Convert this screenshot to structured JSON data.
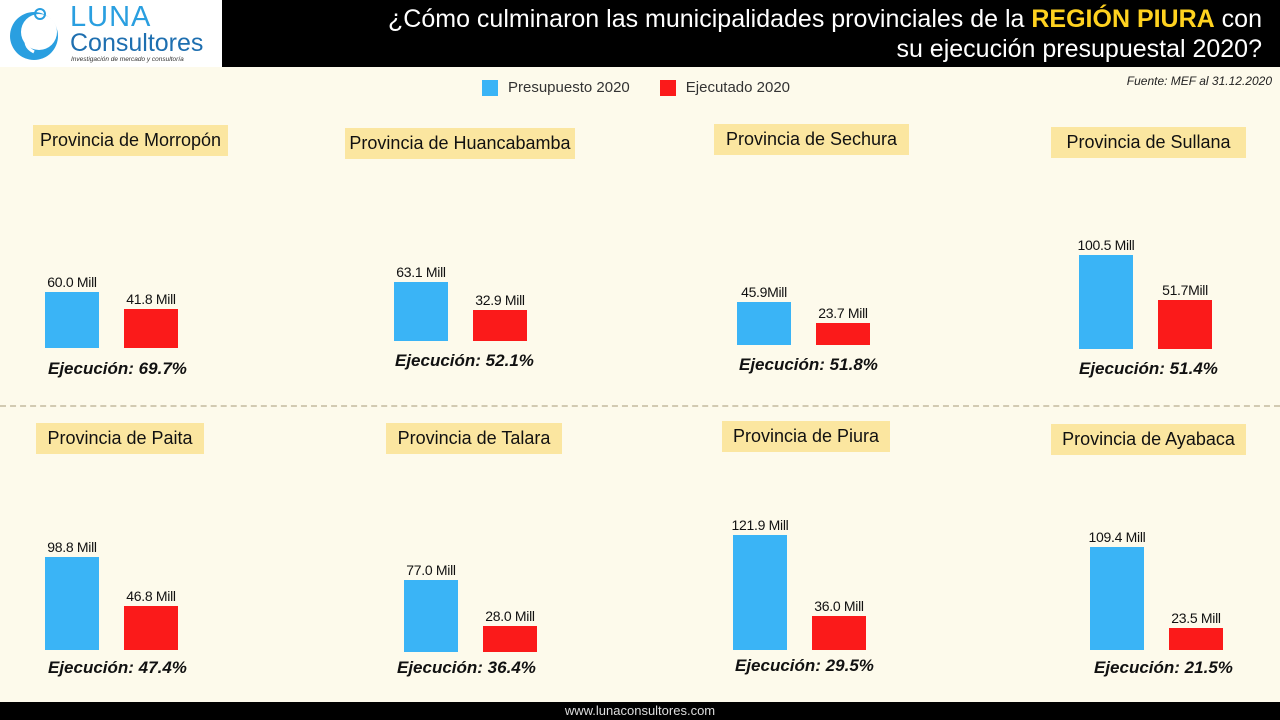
{
  "header": {
    "logo_luna": "LUNA",
    "logo_consultores": "Consultores",
    "logo_tagline": "Investigación de mercado y consultoría",
    "title_part1": "¿Cómo culminaron las municipalidades provinciales de la ",
    "title_highlight": "REGIÓN PIURA",
    "title_part2": " con",
    "title_line2": "su ejecución presupuestal 2020?"
  },
  "legend": {
    "budget": "Presupuesto 2020",
    "executed": "Ejecutado 2020"
  },
  "source": "Fuente: MEF al 31.12.2020",
  "footer": "www.lunaconsultores.com",
  "colors": {
    "budget": "#3ab4f6",
    "executed": "#fb1a1a",
    "title_bg": "#fbe6a0",
    "highlight": "#ffd21f"
  },
  "chart_data": {
    "type": "bar",
    "title": "¿Cómo culminaron las municipalidades provinciales de la REGIÓN PIURA con su ejecución presupuestal 2020?",
    "unit": "Mill",
    "series": [
      {
        "name": "Presupuesto 2020"
      },
      {
        "name": "Ejecutado 2020"
      }
    ],
    "panels": [
      {
        "title": "Provincia de Morropón",
        "budget": 60.0,
        "budget_label": "60.0 Mill",
        "executed": 41.8,
        "executed_label": "41.8 Mill",
        "execution": "Ejecución: 69.7%"
      },
      {
        "title": "Provincia de Huancabamba",
        "budget": 63.1,
        "budget_label": "63.1 Mill",
        "executed": 32.9,
        "executed_label": "32.9 Mill",
        "execution": "Ejecución: 52.1%"
      },
      {
        "title": "Provincia de Sechura",
        "budget": 45.9,
        "budget_label": "45.9Mill",
        "executed": 23.7,
        "executed_label": "23.7 Mill",
        "execution": "Ejecución: 51.8%"
      },
      {
        "title": "Provincia de Sullana",
        "budget": 100.5,
        "budget_label": "100.5 Mill",
        "executed": 51.7,
        "executed_label": "51.7Mill",
        "execution": "Ejecución: 51.4%"
      },
      {
        "title": "Provincia de Paita",
        "budget": 98.8,
        "budget_label": "98.8 Mill",
        "executed": 46.8,
        "executed_label": "46.8 Mill",
        "execution": "Ejecución: 47.4%"
      },
      {
        "title": "Provincia de Talara",
        "budget": 77.0,
        "budget_label": "77.0 Mill",
        "executed": 28.0,
        "executed_label": "28.0 Mill",
        "execution": "Ejecución: 36.4%"
      },
      {
        "title": "Provincia de Piura",
        "budget": 121.9,
        "budget_label": "121.9 Mill",
        "executed": 36.0,
        "executed_label": "36.0 Mill",
        "execution": "Ejecución: 29.5%"
      },
      {
        "title": "Provincia de Ayabaca",
        "budget": 109.4,
        "budget_label": "109.4 Mill",
        "executed": 23.5,
        "executed_label": "23.5 Mill",
        "execution": "Ejecución: 21.5%"
      }
    ]
  }
}
